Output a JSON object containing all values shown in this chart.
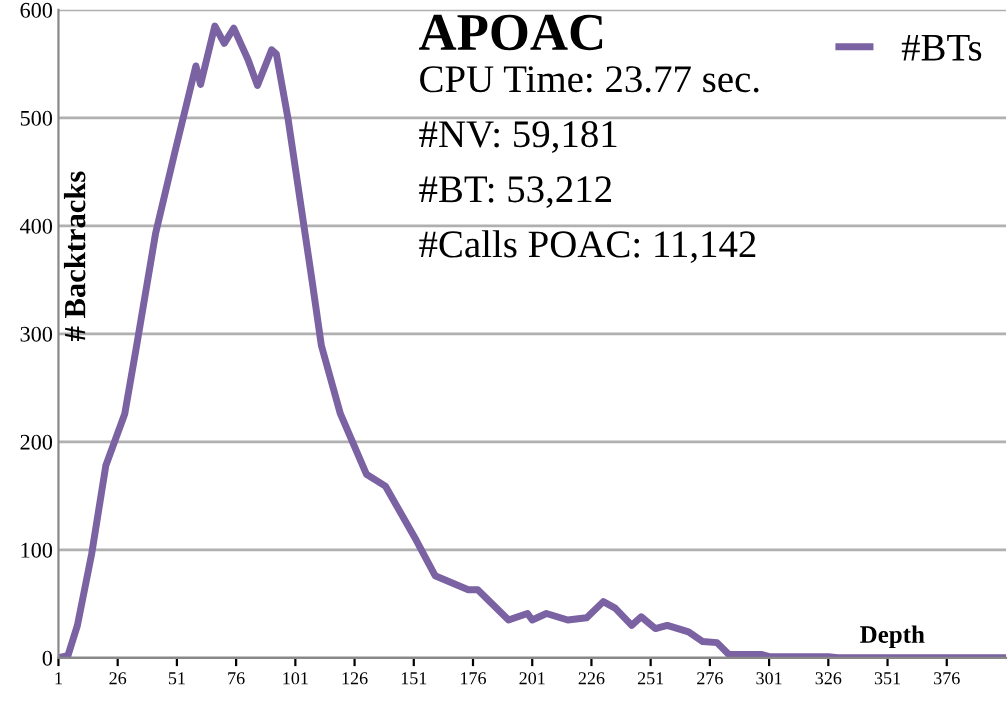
{
  "chart_data": {
    "type": "line",
    "title": "APOAC",
    "xlabel": "Depth",
    "ylabel": "# Backtracks",
    "annotations": [
      "CPU Time: 23.77 sec.",
      "#NV: 59,181",
      "#BT: 53,212",
      "#Calls POAC: 11,142"
    ],
    "xlim": [
      1,
      401
    ],
    "xticks": [
      1,
      26,
      51,
      76,
      101,
      126,
      151,
      176,
      201,
      226,
      251,
      276,
      301,
      326,
      351,
      376
    ],
    "ylim": [
      0,
      600
    ],
    "yticks": [
      0,
      100,
      200,
      300,
      400,
      500,
      600
    ],
    "grid": "y",
    "legend": "top right",
    "marker": "none",
    "line_style": "solid",
    "series": [
      {
        "name": "#BTs",
        "color": "#7b62a3",
        "x": [
          1,
          5,
          9,
          15,
          21,
          29,
          34,
          42,
          50,
          59,
          61,
          67,
          71,
          75,
          81,
          85,
          91,
          93,
          98,
          103,
          108,
          112,
          120,
          131,
          139,
          152,
          160,
          174,
          178,
          191,
          199,
          201,
          207,
          216,
          224,
          231,
          236,
          243,
          247,
          253,
          258,
          267,
          273,
          279,
          284,
          298,
          301,
          326,
          330,
          400
        ],
        "values": [
          0,
          2,
          30,
          96,
          178,
          226,
          289,
          393,
          467,
          548,
          531,
          585,
          569,
          583,
          554,
          530,
          563,
          559,
          498,
          424,
          350,
          289,
          226,
          170,
          159,
          109,
          76,
          63,
          63,
          35,
          41,
          35,
          41,
          35,
          37,
          52,
          46,
          30,
          38,
          27,
          30,
          24,
          15,
          14,
          3,
          3,
          1,
          1,
          0,
          0
        ]
      }
    ]
  }
}
